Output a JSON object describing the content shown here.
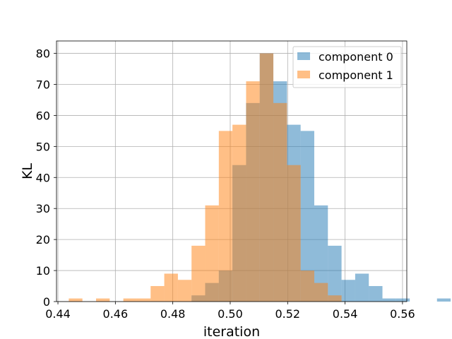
{
  "chart_data": {
    "type": "histogram",
    "title": "",
    "xlabel": "iteration",
    "ylabel": "KL",
    "xlim": [
      0.4395,
      0.5615
    ],
    "ylim": [
      0,
      84
    ],
    "xticks": [
      "0.44",
      "0.46",
      "0.48",
      "0.50",
      "0.52",
      "0.54",
      "0.56"
    ],
    "xtick_values": [
      0.44,
      0.46,
      0.48,
      0.5,
      0.52,
      0.54,
      0.56
    ],
    "yticks": [
      "0",
      "10",
      "20",
      "30",
      "40",
      "50",
      "60",
      "70",
      "80"
    ],
    "ytick_values": [
      0,
      10,
      20,
      30,
      40,
      50,
      60,
      70,
      80
    ],
    "grid": true,
    "legend_position": "top-right",
    "series": [
      {
        "name": "component 0",
        "color": "#1f77b4",
        "alpha": 0.5,
        "bin_start": 0.48652,
        "bin_width": 0.00475,
        "counts": [
          2,
          6,
          10,
          44,
          64,
          80,
          71,
          57,
          55,
          31,
          18,
          7,
          9,
          5,
          1,
          1,
          0,
          0,
          1,
          0,
          1
        ]
      },
      {
        "name": "component 1",
        "color": "#ff7f0e",
        "alpha": 0.5,
        "bin_start": 0.44378,
        "bin_width": 0.00475,
        "counts": [
          1,
          0,
          1,
          0,
          1,
          1,
          5,
          9,
          7,
          18,
          31,
          55,
          57,
          71,
          80,
          64,
          44,
          10,
          6,
          2
        ]
      }
    ]
  }
}
